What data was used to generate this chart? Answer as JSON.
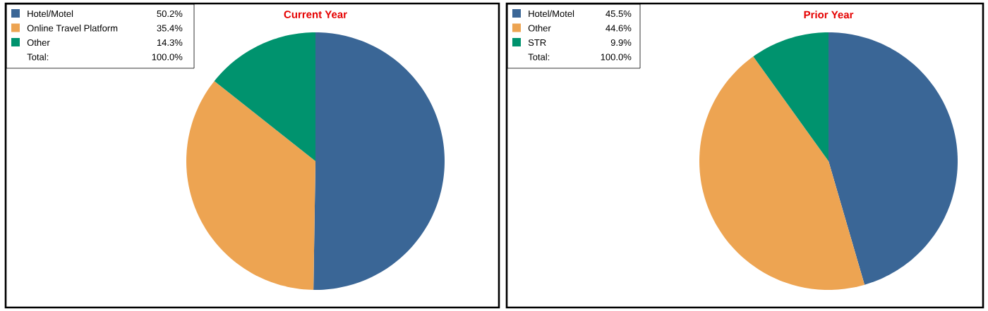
{
  "chart_data": [
    {
      "type": "pie",
      "title": "Current Year",
      "categories": [
        "Hotel/Motel",
        "Online Travel Platform",
        "Other"
      ],
      "values": [
        50.2,
        35.4,
        14.3
      ],
      "colors": [
        "#3a6696",
        "#eda452",
        "#00936e"
      ],
      "value_labels": [
        "50.2%",
        "35.4%",
        "14.3%"
      ],
      "legend": "top left",
      "annotations": [
        "Total:",
        "100.0%"
      ]
    },
    {
      "type": "pie",
      "title": "Prior Year",
      "categories": [
        "Hotel/Motel",
        "Other",
        "STR"
      ],
      "values": [
        45.5,
        44.6,
        9.9
      ],
      "colors": [
        "#3a6696",
        "#eda452",
        "#00936e"
      ],
      "value_labels": [
        "45.5%",
        "44.6%",
        "9.9%"
      ],
      "legend": "top left",
      "annotations": [
        "Total:",
        "100.0%"
      ]
    }
  ]
}
